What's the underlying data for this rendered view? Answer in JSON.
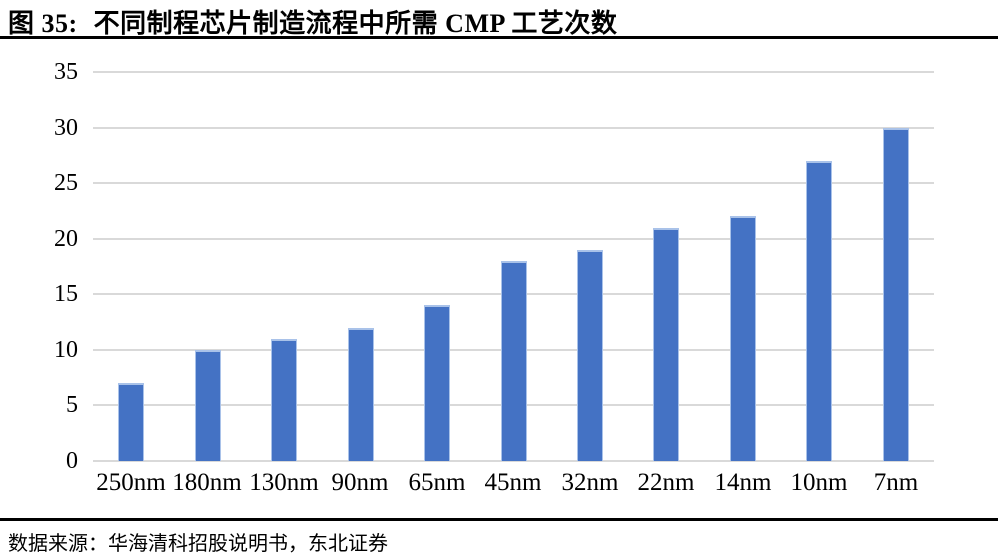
{
  "header": {
    "figure_label": "图 35:",
    "title": "不同制程芯片制造流程中所需 CMP 工艺次数"
  },
  "footer": {
    "source": "数据来源：华海清科招股说明书，东北证券"
  },
  "chart_data": {
    "type": "bar",
    "title": "不同制程芯片制造流程中所需 CMP 工艺次数",
    "categories": [
      "250nm",
      "180nm",
      "130nm",
      "90nm",
      "65nm",
      "45nm",
      "32nm",
      "22nm",
      "14nm",
      "10nm",
      "7nm"
    ],
    "values": [
      7,
      10,
      11,
      12,
      14,
      18,
      19,
      21,
      22,
      27,
      30
    ],
    "xlabel": "",
    "ylabel": "",
    "ylim": [
      0,
      35
    ],
    "yticks": [
      0,
      5,
      10,
      15,
      20,
      25,
      30,
      35
    ],
    "grid": "horizontal",
    "legend": "none",
    "bar_color": "#4472C4",
    "bar_edge_color": "#A9C2E9",
    "gridline_color": "#D9D9D9"
  }
}
